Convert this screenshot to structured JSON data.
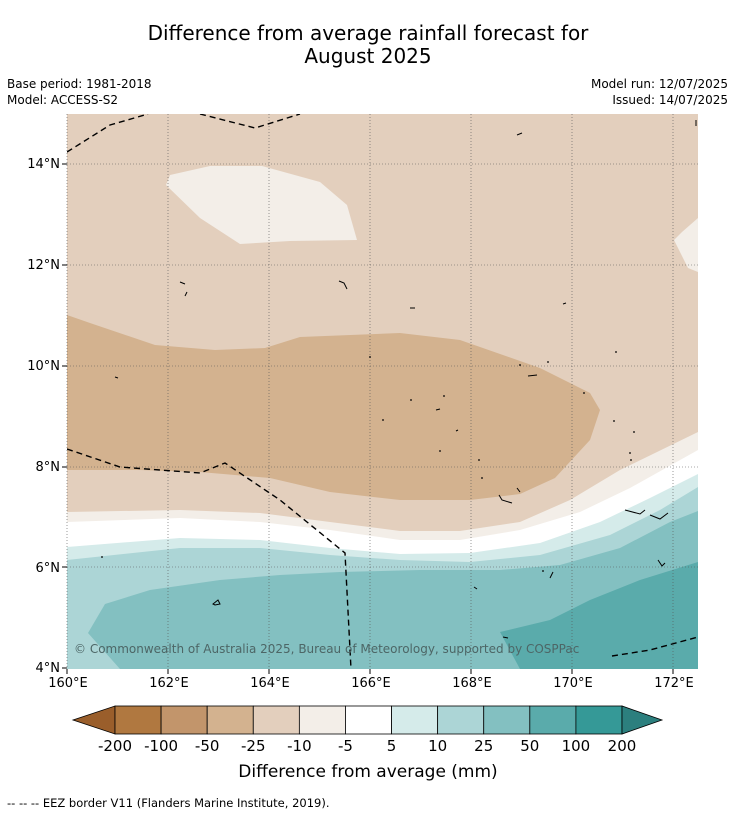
{
  "title": {
    "line1": "Difference from average rainfall forecast for",
    "line2": "August 2025"
  },
  "meta": {
    "base_period": "Base period: 1981-2018",
    "model": "Model: ACCESS-S2",
    "model_run": "Model run: 12/07/2025",
    "issued": "Issued: 14/07/2025"
  },
  "map": {
    "lat_labels": [
      "14°N",
      "12°N",
      "10°N",
      "8°N",
      "6°N",
      "4°N"
    ],
    "lon_labels": [
      "160°E",
      "162°E",
      "164°E",
      "166°E",
      "168°E",
      "170°E",
      "172°E"
    ],
    "copyright": "© Commonwealth of Australia 2025, Bureau of Meteorology, supported by COSPPac",
    "colors": {
      "land": "#000000",
      "eez_border": "#000000",
      "grid": "#555555"
    }
  },
  "colorbar": {
    "title": "Difference from average (mm)",
    "tick_labels": [
      "-200",
      "-100",
      "-50",
      "-25",
      "-10",
      "-5",
      "5",
      "10",
      "25",
      "50",
      "100",
      "200"
    ],
    "colors": [
      "#9a5e2b",
      "#b07840",
      "#c2956b",
      "#d3b28f",
      "#e3cfbd",
      "#f3eee8",
      "#ffffff",
      "#d5ebea",
      "#acd5d6",
      "#83c0c1",
      "#5aabab",
      "#359997",
      "#2c7f7e"
    ]
  },
  "footer": {
    "legend": "--  --  -- EEZ border V11 (Flanders Marine Institute, 2019)."
  }
}
